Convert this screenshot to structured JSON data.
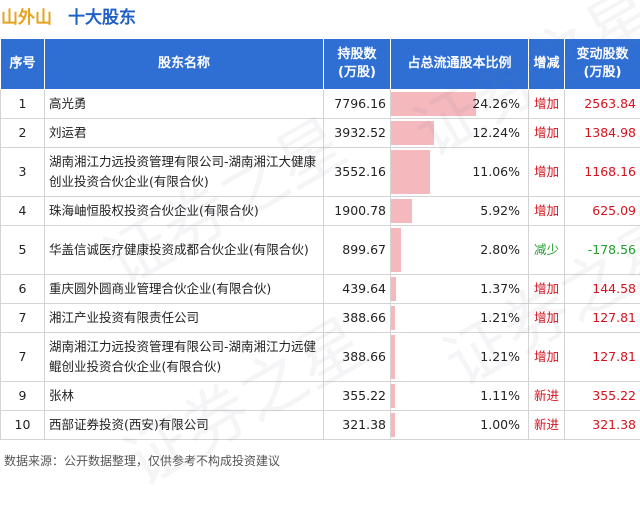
{
  "header": {
    "company": "山外山",
    "title": "十大股东"
  },
  "table": {
    "columns": {
      "idx": "序号",
      "name": "股东名称",
      "shares": "持股数\n(万股)",
      "ratio": "占总流通股本比例",
      "change_type": "增减",
      "change_amt": "变动股数\n(万股)"
    },
    "rows": [
      {
        "idx": "1",
        "name": "高光勇",
        "shares": "7796.16",
        "ratio": "24.26%",
        "ratio_value": 24.26,
        "change_type": "增加",
        "change_kind": "up",
        "change_amt": "2563.84"
      },
      {
        "idx": "2",
        "name": "刘运君",
        "shares": "3932.52",
        "ratio": "12.24%",
        "ratio_value": 12.24,
        "change_type": "增加",
        "change_kind": "up",
        "change_amt": "1384.98"
      },
      {
        "idx": "3",
        "name": "湖南湘江力远投资管理有限公司-湖南湘江大健康创业投资合伙企业(有限合伙)",
        "shares": "3552.16",
        "ratio": "11.06%",
        "ratio_value": 11.06,
        "change_type": "增加",
        "change_kind": "up",
        "change_amt": "1168.16"
      },
      {
        "idx": "4",
        "name": "珠海岫恒股权投资合伙企业(有限合伙)",
        "shares": "1900.78",
        "ratio": "5.92%",
        "ratio_value": 5.92,
        "change_type": "增加",
        "change_kind": "up",
        "change_amt": "625.09"
      },
      {
        "idx": "5",
        "name": "华盖信诚医疗健康投资成都合伙企业(有限合伙)",
        "shares": "899.67",
        "ratio": "2.80%",
        "ratio_value": 2.8,
        "change_type": "减少",
        "change_kind": "down",
        "change_amt": "-178.56"
      },
      {
        "idx": "6",
        "name": "重庆圆外圆商业管理合伙企业(有限合伙)",
        "shares": "439.64",
        "ratio": "1.37%",
        "ratio_value": 1.37,
        "change_type": "增加",
        "change_kind": "up",
        "change_amt": "144.58"
      },
      {
        "idx": "7",
        "name": "湘江产业投资有限责任公司",
        "shares": "388.66",
        "ratio": "1.21%",
        "ratio_value": 1.21,
        "change_type": "增加",
        "change_kind": "up",
        "change_amt": "127.81"
      },
      {
        "idx": "7",
        "name": "湖南湘江力远投资管理有限公司-湖南湘江力远健鲲创业投资合伙企业(有限合伙)",
        "shares": "388.66",
        "ratio": "1.21%",
        "ratio_value": 1.21,
        "change_type": "增加",
        "change_kind": "up",
        "change_amt": "127.81"
      },
      {
        "idx": "9",
        "name": "张林",
        "shares": "355.22",
        "ratio": "1.11%",
        "ratio_value": 1.11,
        "change_type": "新进",
        "change_kind": "new",
        "change_amt": "355.22"
      },
      {
        "idx": "10",
        "name": "西部证券投资(西安)有限公司",
        "shares": "321.38",
        "ratio": "1.00%",
        "ratio_value": 1.0,
        "change_type": "新进",
        "change_kind": "new",
        "change_amt": "321.38"
      }
    ]
  },
  "footer": {
    "source": "数据来源：公开数据整理，仅供参考不构成投资建议"
  },
  "watermark": {
    "text": "证券之星"
  },
  "colors": {
    "header_bg": "#2f6fd4",
    "bar": "#f4b8bd",
    "increase": "#d6121d",
    "decrease": "#23a02c",
    "company": "#e8a21d",
    "title": "#1f5fc6"
  }
}
